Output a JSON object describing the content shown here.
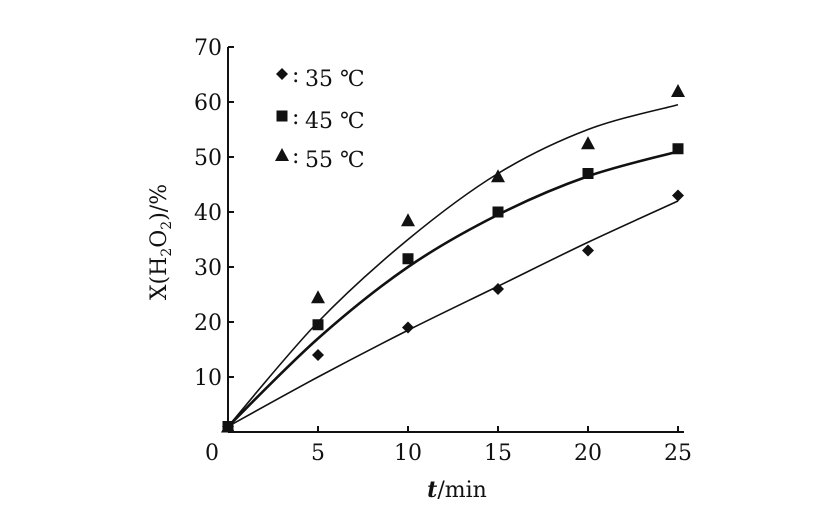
{
  "chart_data": {
    "type": "scatter",
    "title": "",
    "xlabel": {
      "var": "t",
      "unit": "/min"
    },
    "ylabel": {
      "main": "X(H",
      "sub1": "2",
      "mid": "O",
      "sub2": "2",
      "end": ")/%"
    },
    "xlim": [
      0,
      25
    ],
    "ylim": [
      0,
      70
    ],
    "x_ticks": [
      0,
      5,
      10,
      15,
      20,
      25
    ],
    "y_ticks": [
      10,
      20,
      30,
      40,
      50,
      60,
      70
    ],
    "legend_position": "top-left",
    "series": [
      {
        "name": "35 ℃",
        "marker": "diamond",
        "points": [
          [
            0,
            1
          ],
          [
            5,
            14
          ],
          [
            10,
            19
          ],
          [
            15,
            26
          ],
          [
            20,
            33
          ],
          [
            25,
            43
          ]
        ],
        "fit": [
          [
            0,
            1
          ],
          [
            5,
            10
          ],
          [
            10,
            18.5
          ],
          [
            15,
            26.5
          ],
          [
            20,
            34.5
          ],
          [
            25,
            42
          ]
        ]
      },
      {
        "name": "45 ℃",
        "marker": "square",
        "points": [
          [
            0,
            1
          ],
          [
            5,
            19.5
          ],
          [
            10,
            31.5
          ],
          [
            15,
            40
          ],
          [
            20,
            47
          ],
          [
            25,
            51.5
          ]
        ],
        "fit": [
          [
            0,
            1
          ],
          [
            5,
            17
          ],
          [
            10,
            30
          ],
          [
            15,
            39.5
          ],
          [
            20,
            46.5
          ],
          [
            25,
            51
          ]
        ]
      },
      {
        "name": "55 ℃",
        "marker": "triangle",
        "points": [
          [
            0,
            1
          ],
          [
            5,
            24.5
          ],
          [
            10,
            38.5
          ],
          [
            15,
            46.5
          ],
          [
            20,
            52.5
          ],
          [
            25,
            62
          ]
        ],
        "fit": [
          [
            0,
            1
          ],
          [
            5,
            20
          ],
          [
            10,
            35
          ],
          [
            15,
            47
          ],
          [
            20,
            55
          ],
          [
            25,
            59.5
          ]
        ]
      }
    ]
  }
}
